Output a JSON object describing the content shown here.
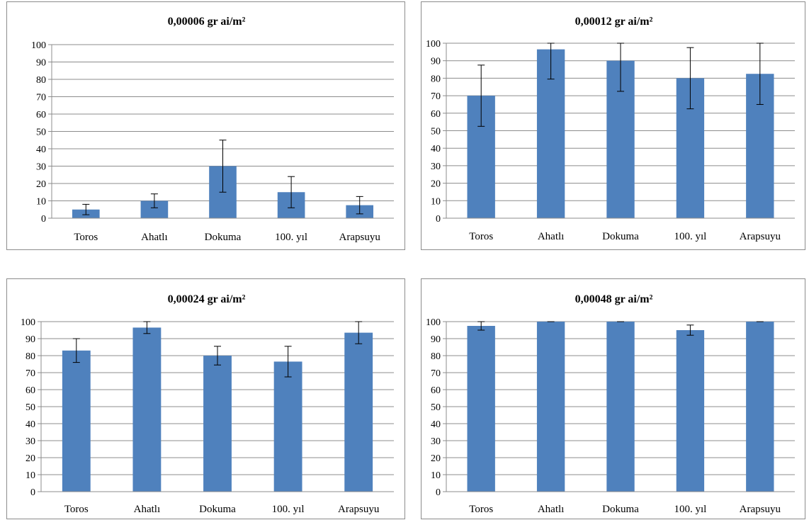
{
  "chart_data": [
    {
      "type": "bar",
      "title": "0,00006 gr ai/m²",
      "categories": [
        "Toros",
        "Ahatlı",
        "Dokuma",
        "100. yıl",
        "Arapsuyu"
      ],
      "values": [
        5,
        10,
        30,
        15,
        7.5
      ],
      "error": [
        3,
        4,
        15,
        9,
        5
      ],
      "ylim": [
        0,
        100
      ],
      "yticks": [
        0,
        10,
        20,
        30,
        40,
        50,
        60,
        70,
        80,
        90,
        100
      ],
      "grid": true,
      "color": "#4f81bd"
    },
    {
      "type": "bar",
      "title": "0,00012 gr ai/m²",
      "categories": [
        "Toros",
        "Ahatlı",
        "Dokuma",
        "100. yıl",
        "Arapsuyu"
      ],
      "values": [
        70,
        96.5,
        90,
        80,
        82.5
      ],
      "error": [
        17.5,
        17,
        17.5,
        17.5,
        17.5
      ],
      "ylim": [
        0,
        100
      ],
      "yticks": [
        0,
        10,
        20,
        30,
        40,
        50,
        60,
        70,
        80,
        90,
        100
      ],
      "grid": true,
      "color": "#4f81bd"
    },
    {
      "type": "bar",
      "title": "0,00024 gr ai/m²",
      "categories": [
        "Toros",
        "Ahatlı",
        "Dokuma",
        "100. yıl",
        "Arapsuyu"
      ],
      "values": [
        83,
        96.5,
        80,
        76.5,
        93.5
      ],
      "error": [
        7,
        3.5,
        5.5,
        9,
        6.5
      ],
      "ylim": [
        0,
        100
      ],
      "yticks": [
        0,
        10,
        20,
        30,
        40,
        50,
        60,
        70,
        80,
        90,
        100
      ],
      "grid": true,
      "color": "#4f81bd"
    },
    {
      "type": "bar",
      "title": "0,00048 gr ai/m²",
      "categories": [
        "Toros",
        "Ahatlı",
        "Dokuma",
        "100. yıl",
        "Arapsuyu"
      ],
      "values": [
        97.5,
        100,
        100,
        95,
        100
      ],
      "error": [
        2.5,
        0,
        0,
        3,
        0
      ],
      "ylim": [
        0,
        100
      ],
      "yticks": [
        0,
        10,
        20,
        30,
        40,
        50,
        60,
        70,
        80,
        90,
        100
      ],
      "grid": true,
      "color": "#4f81bd"
    }
  ]
}
